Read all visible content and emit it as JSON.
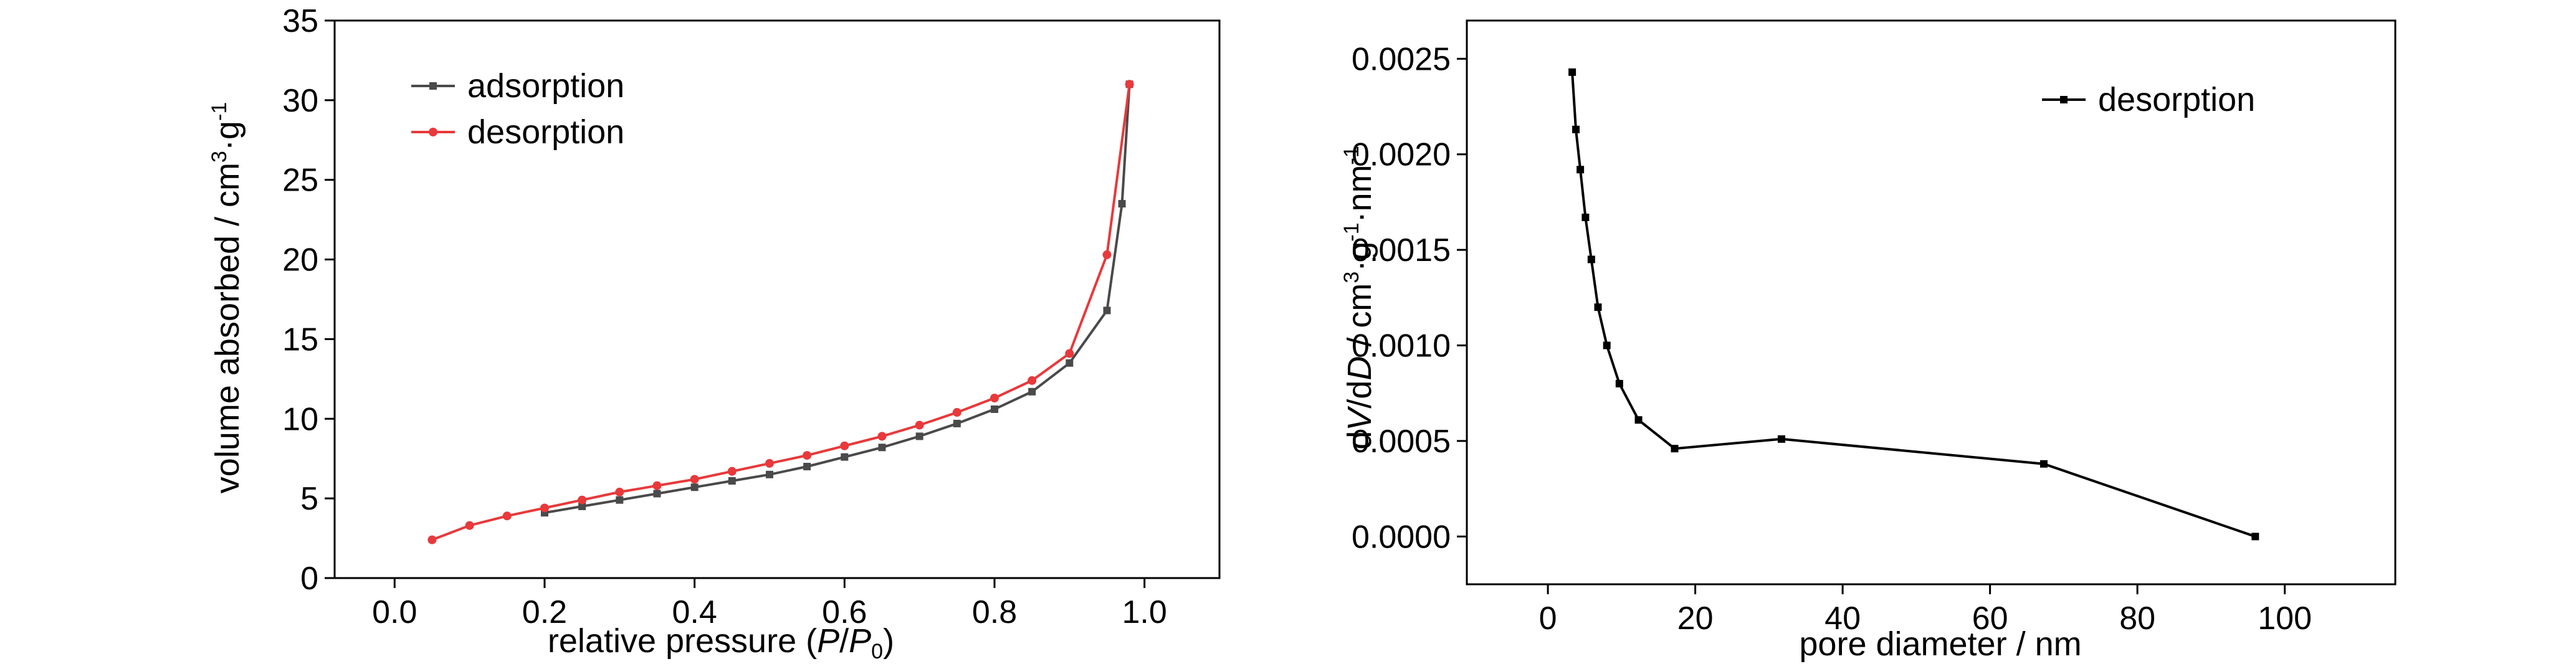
{
  "chart_data": [
    {
      "type": "line",
      "xlabel_parts": {
        "pre": "relative pressure (",
        "it1": "P",
        "slash": "/",
        "it2": "P",
        "sub": "0",
        "post": ")"
      },
      "ylabel_parts": {
        "pre": "volume absorbed / cm",
        "sup1": "3",
        "mid": "·g",
        "sup2": "-1"
      },
      "xlim": [
        -0.08,
        1.1
      ],
      "ylim": [
        0,
        35
      ],
      "xticks": [
        0.0,
        0.2,
        0.4,
        0.6,
        0.8,
        1.0
      ],
      "xtick_labels": [
        "0.0",
        "0.2",
        "0.4",
        "0.6",
        "0.8",
        "1.0"
      ],
      "yticks": [
        0,
        5,
        10,
        15,
        20,
        25,
        30,
        35
      ],
      "ytick_labels": [
        "0",
        "5",
        "10",
        "15",
        "20",
        "25",
        "30",
        "35"
      ],
      "legend_position": "top-left",
      "series": [
        {
          "name": "adsorption",
          "color": "#4a4a4a",
          "marker": "square",
          "x": [
            0.2,
            0.25,
            0.3,
            0.35,
            0.4,
            0.45,
            0.5,
            0.55,
            0.6,
            0.65,
            0.7,
            0.75,
            0.8,
            0.85,
            0.9,
            0.95,
            0.97,
            0.98
          ],
          "y": [
            4.1,
            4.5,
            4.9,
            5.3,
            5.7,
            6.1,
            6.5,
            7.0,
            7.6,
            8.2,
            8.9,
            9.7,
            10.6,
            11.7,
            13.5,
            16.8,
            23.5,
            31.0
          ]
        },
        {
          "name": "desorption",
          "color": "#e8393b",
          "marker": "circle",
          "x": [
            0.05,
            0.1,
            0.15,
            0.2,
            0.25,
            0.3,
            0.35,
            0.4,
            0.45,
            0.5,
            0.55,
            0.6,
            0.65,
            0.7,
            0.75,
            0.8,
            0.85,
            0.9,
            0.95,
            0.98
          ],
          "y": [
            2.4,
            3.3,
            3.9,
            4.4,
            4.9,
            5.4,
            5.8,
            6.2,
            6.7,
            7.2,
            7.7,
            8.3,
            8.9,
            9.6,
            10.4,
            11.3,
            12.4,
            14.1,
            20.3,
            31.0
          ]
        }
      ]
    },
    {
      "type": "line",
      "xlabel_parts": {
        "pre": "pore diameter / nm"
      },
      "ylabel_parts": {
        "pre": "d",
        "it1": "V",
        "mid1": "/d",
        "it2": "D",
        "mid2": " / cm",
        "sup1": "3",
        "mid3": "·g",
        "sup2": "-1",
        "mid4": "·nm",
        "sup3": "-1"
      },
      "xlim": [
        -11,
        115
      ],
      "ylim": [
        -0.00025,
        0.0027
      ],
      "xticks": [
        0,
        20,
        40,
        60,
        80,
        100
      ],
      "xtick_labels": [
        "0",
        "20",
        "40",
        "60",
        "80",
        "100"
      ],
      "yticks": [
        0.0,
        0.0005,
        0.001,
        0.0015,
        0.002,
        0.0025
      ],
      "ytick_labels": [
        "0.0000",
        "0.0005",
        "0.0010",
        "0.0015",
        "0.0020",
        "0.0025"
      ],
      "legend_position": "top-right",
      "series": [
        {
          "name": "desorption",
          "color": "#000000",
          "marker": "square",
          "x": [
            3.3,
            3.8,
            4.4,
            5.1,
            5.9,
            6.8,
            8.0,
            9.7,
            12.3,
            17.2,
            31.7,
            67.3,
            96.0
          ],
          "y": [
            0.00243,
            0.00213,
            0.00192,
            0.00167,
            0.00145,
            0.0012,
            0.001,
            0.0008,
            0.00061,
            0.00046,
            0.00051,
            0.00038,
            0.0
          ]
        }
      ]
    }
  ]
}
